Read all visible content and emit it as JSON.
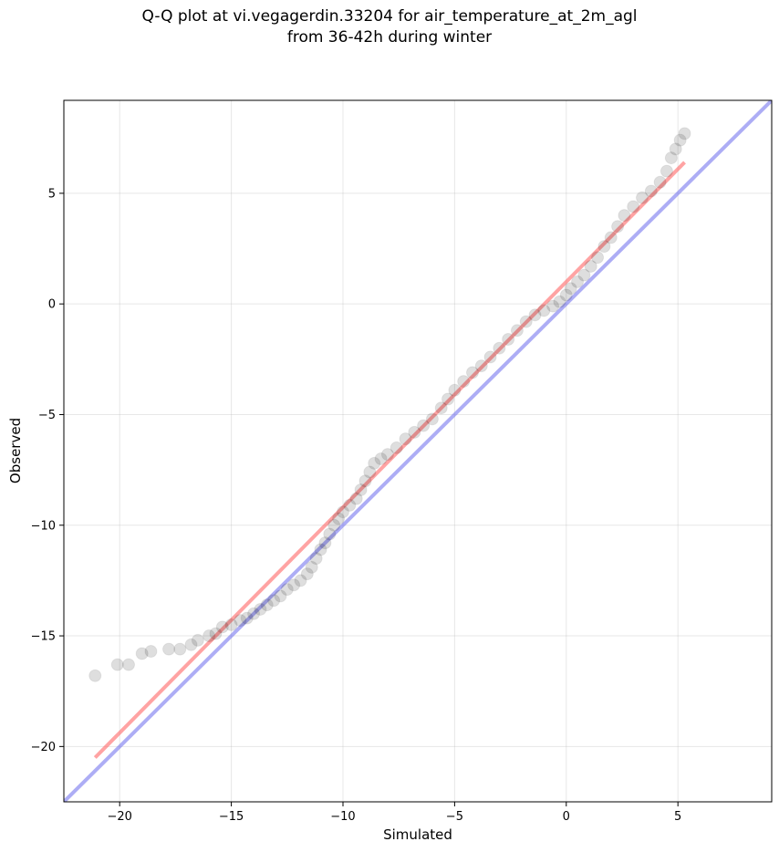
{
  "chart_data": {
    "type": "scatter",
    "title": "Q-Q plot at vi.vegagerdin.33204 for air_temperature_at_2m_agl",
    "subtitle": "from 36-42h during winter",
    "xlabel": "Simulated",
    "ylabel": "Observed",
    "xlim": [
      -22.5,
      9.2
    ],
    "ylim": [
      -22.5,
      9.2
    ],
    "xticks": [
      -20,
      -15,
      -10,
      -5,
      0,
      5
    ],
    "yticks": [
      -20,
      -15,
      -10,
      -5,
      0,
      5
    ],
    "xtick_labels": [
      "−20",
      "−15",
      "−10",
      "−5",
      "0",
      "5"
    ],
    "ytick_labels": [
      "−20",
      "−15",
      "−10",
      "−5",
      "0",
      "5"
    ],
    "grid": true,
    "series": [
      {
        "kind": "points",
        "color": "#000000",
        "points": [
          [
            -21.1,
            -16.8
          ],
          [
            -20.1,
            -16.3
          ],
          [
            -19.6,
            -16.3
          ],
          [
            -19.0,
            -15.8
          ],
          [
            -18.6,
            -15.7
          ],
          [
            -17.8,
            -15.6
          ],
          [
            -17.3,
            -15.6
          ],
          [
            -16.8,
            -15.4
          ],
          [
            -16.5,
            -15.2
          ],
          [
            -16.0,
            -15.0
          ],
          [
            -15.7,
            -14.9
          ],
          [
            -15.4,
            -14.6
          ],
          [
            -15.0,
            -14.5
          ],
          [
            -14.6,
            -14.3
          ],
          [
            -14.3,
            -14.2
          ],
          [
            -14.0,
            -14.0
          ],
          [
            -13.7,
            -13.8
          ],
          [
            -13.4,
            -13.6
          ],
          [
            -13.1,
            -13.4
          ],
          [
            -12.8,
            -13.2
          ],
          [
            -12.5,
            -12.9
          ],
          [
            -12.2,
            -12.7
          ],
          [
            -11.9,
            -12.5
          ],
          [
            -11.6,
            -12.2
          ],
          [
            -11.4,
            -11.9
          ],
          [
            -11.2,
            -11.5
          ],
          [
            -11.0,
            -11.1
          ],
          [
            -10.8,
            -10.8
          ],
          [
            -10.6,
            -10.4
          ],
          [
            -10.4,
            -10.0
          ],
          [
            -10.2,
            -9.7
          ],
          [
            -10.0,
            -9.4
          ],
          [
            -9.7,
            -9.1
          ],
          [
            -9.4,
            -8.8
          ],
          [
            -9.2,
            -8.4
          ],
          [
            -9.0,
            -8.0
          ],
          [
            -8.8,
            -7.6
          ],
          [
            -8.6,
            -7.2
          ],
          [
            -8.3,
            -7.0
          ],
          [
            -8.0,
            -6.8
          ],
          [
            -7.6,
            -6.5
          ],
          [
            -7.2,
            -6.1
          ],
          [
            -6.8,
            -5.8
          ],
          [
            -6.4,
            -5.5
          ],
          [
            -6.0,
            -5.2
          ],
          [
            -5.6,
            -4.7
          ],
          [
            -5.3,
            -4.3
          ],
          [
            -5.0,
            -3.9
          ],
          [
            -4.6,
            -3.5
          ],
          [
            -4.2,
            -3.1
          ],
          [
            -3.8,
            -2.8
          ],
          [
            -3.4,
            -2.4
          ],
          [
            -3.0,
            -2.0
          ],
          [
            -2.6,
            -1.6
          ],
          [
            -2.2,
            -1.2
          ],
          [
            -1.8,
            -0.8
          ],
          [
            -1.4,
            -0.5
          ],
          [
            -1.0,
            -0.3
          ],
          [
            -0.6,
            -0.1
          ],
          [
            -0.3,
            0.1
          ],
          [
            0.0,
            0.4
          ],
          [
            0.2,
            0.7
          ],
          [
            0.5,
            1.0
          ],
          [
            0.8,
            1.3
          ],
          [
            1.1,
            1.7
          ],
          [
            1.4,
            2.1
          ],
          [
            1.7,
            2.6
          ],
          [
            2.0,
            3.0
          ],
          [
            2.3,
            3.5
          ],
          [
            2.6,
            4.0
          ],
          [
            3.0,
            4.4
          ],
          [
            3.4,
            4.8
          ],
          [
            3.8,
            5.1
          ],
          [
            4.2,
            5.5
          ],
          [
            4.5,
            6.0
          ],
          [
            4.7,
            6.6
          ],
          [
            4.9,
            7.0
          ],
          [
            5.1,
            7.4
          ],
          [
            5.3,
            7.7
          ]
        ]
      },
      {
        "kind": "fit-line",
        "color": "#ff6666",
        "x": [
          -21.1,
          5.3
        ],
        "y": [
          -20.5,
          6.4
        ]
      },
      {
        "kind": "identity-line",
        "color": "#7777ee",
        "x": [
          -22.5,
          9.2
        ],
        "y": [
          -22.5,
          9.2
        ]
      }
    ]
  }
}
